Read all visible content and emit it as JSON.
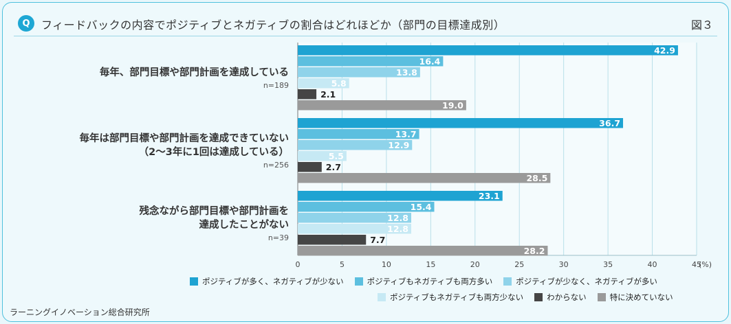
{
  "header": {
    "badge": "Q",
    "title": "フィードバックの内容でポジティブとネガティブの割合はどれほどか（部門の目標達成別）",
    "figure_number": "図３"
  },
  "footer": {
    "source": "ラーニングイノベーション総合研究所"
  },
  "chart_data": {
    "type": "bar",
    "orientation": "horizontal",
    "title": "フィードバックの内容でポジティブとネガティブの割合はどれほどか（部門の目標達成別）",
    "xlabel": "(%)",
    "xlim": [
      0,
      45
    ],
    "xticks": [
      0,
      5,
      10,
      15,
      20,
      25,
      30,
      35,
      40,
      45
    ],
    "x_unit_label": "(%)",
    "grid": true,
    "legend_position": "bottom",
    "categories": [
      {
        "label_lines": [
          "毎年、部門目標や部門計画を達成している"
        ],
        "n": "n=189"
      },
      {
        "label_lines": [
          "毎年は部門目標や部門計画を達成できていない",
          "（2〜3年に1回は達成している）"
        ],
        "n": "n=256"
      },
      {
        "label_lines": [
          "残念ながら部門目標や部門計画を",
          "達成したことがない"
        ],
        "n": "n=39"
      }
    ],
    "series": [
      {
        "name": "ポジティブが多く、ネガティブが少ない",
        "color": "#1ea3d2",
        "label_color": "#ffffff",
        "values": [
          42.9,
          36.7,
          23.1
        ]
      },
      {
        "name": "ポジティブもネガティブも両方多い",
        "color": "#5cbfdf",
        "label_color": "#ffffff",
        "values": [
          16.4,
          13.7,
          15.4
        ]
      },
      {
        "name": "ポジティブが少なく、ネガティブが多い",
        "color": "#8fd3ea",
        "label_color": "#ffffff",
        "values": [
          13.8,
          12.9,
          12.8
        ]
      },
      {
        "name": "ポジティブもネガティブも両方少ない",
        "color": "#c6e9f4",
        "label_color": "#ffffff",
        "values": [
          5.8,
          5.5,
          12.8
        ]
      },
      {
        "name": "わからない",
        "color": "#454545",
        "label_color": "#222222",
        "values": [
          2.1,
          2.7,
          7.7
        ]
      },
      {
        "name": "特に決めていない",
        "color": "#9a9a9a",
        "label_color": "#ffffff",
        "values": [
          19.0,
          28.5,
          28.2
        ]
      }
    ]
  }
}
